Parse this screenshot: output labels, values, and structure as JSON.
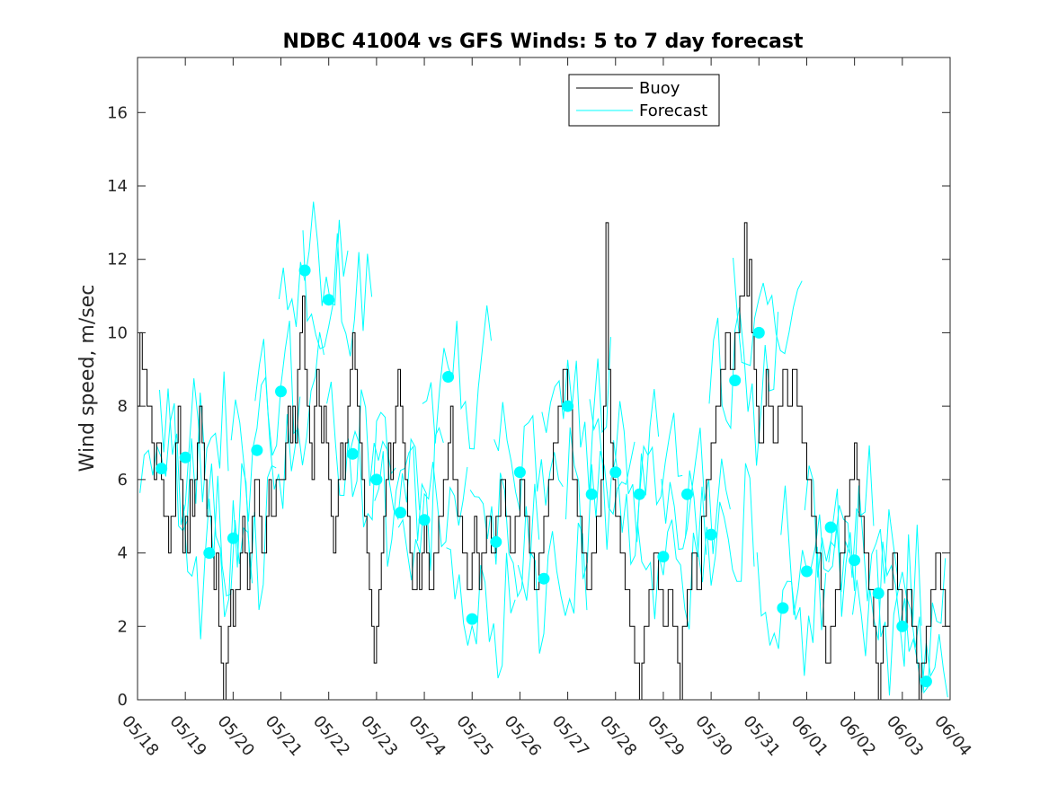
{
  "chart_data": {
    "type": "line",
    "title": "NDBC 41004 vs GFS Winds: 5 to 7 day forecast",
    "xlabel": "",
    "ylabel": "Wind speed, m/sec",
    "ylim": [
      0,
      17.5
    ],
    "xlim": [
      "05/18",
      "06/04"
    ],
    "xticks": [
      "05/18",
      "05/19",
      "05/20",
      "05/21",
      "05/22",
      "05/23",
      "05/24",
      "05/25",
      "05/26",
      "05/27",
      "05/28",
      "05/29",
      "05/30",
      "05/31",
      "06/01",
      "06/02",
      "06/03",
      "06/04"
    ],
    "yticks": [
      0,
      2,
      4,
      6,
      8,
      10,
      12,
      14,
      16
    ],
    "legend": {
      "placement": "top-center",
      "entries": [
        "Buoy",
        "Forecast"
      ]
    },
    "colors": {
      "buoy": "#000000",
      "forecast": "#00FFFF"
    },
    "grid": false,
    "series": [
      {
        "name": "Buoy",
        "x_unit": "days since 05/18",
        "points": [
          [
            0.0,
            8
          ],
          [
            0.05,
            10
          ],
          [
            0.1,
            9
          ],
          [
            0.2,
            8
          ],
          [
            0.3,
            7
          ],
          [
            0.35,
            6
          ],
          [
            0.4,
            7
          ],
          [
            0.5,
            6
          ],
          [
            0.55,
            5
          ],
          [
            0.6,
            5
          ],
          [
            0.65,
            4
          ],
          [
            0.7,
            5
          ],
          [
            0.8,
            7
          ],
          [
            0.85,
            8
          ],
          [
            0.9,
            6
          ],
          [
            0.95,
            4
          ],
          [
            1.0,
            5
          ],
          [
            1.05,
            4
          ],
          [
            1.1,
            6
          ],
          [
            1.15,
            5
          ],
          [
            1.2,
            6
          ],
          [
            1.25,
            7
          ],
          [
            1.3,
            8
          ],
          [
            1.35,
            7
          ],
          [
            1.4,
            6
          ],
          [
            1.45,
            5
          ],
          [
            1.5,
            5
          ],
          [
            1.55,
            4
          ],
          [
            1.6,
            3
          ],
          [
            1.65,
            4
          ],
          [
            1.7,
            2
          ],
          [
            1.75,
            1
          ],
          [
            1.8,
            0
          ],
          [
            1.85,
            1
          ],
          [
            1.9,
            2
          ],
          [
            1.95,
            3
          ],
          [
            2.0,
            2
          ],
          [
            2.05,
            3
          ],
          [
            2.1,
            3
          ],
          [
            2.15,
            4
          ],
          [
            2.2,
            5
          ],
          [
            2.25,
            4
          ],
          [
            2.3,
            3
          ],
          [
            2.35,
            4
          ],
          [
            2.4,
            5
          ],
          [
            2.45,
            6
          ],
          [
            2.5,
            6
          ],
          [
            2.55,
            5
          ],
          [
            2.6,
            4
          ],
          [
            2.65,
            4
          ],
          [
            2.7,
            5
          ],
          [
            2.75,
            6
          ],
          [
            2.8,
            5
          ],
          [
            2.9,
            6
          ],
          [
            3.0,
            6
          ],
          [
            3.1,
            7
          ],
          [
            3.15,
            8
          ],
          [
            3.2,
            7
          ],
          [
            3.25,
            8
          ],
          [
            3.3,
            7
          ],
          [
            3.35,
            9
          ],
          [
            3.4,
            10
          ],
          [
            3.45,
            11
          ],
          [
            3.5,
            9
          ],
          [
            3.55,
            8
          ],
          [
            3.6,
            7
          ],
          [
            3.65,
            6
          ],
          [
            3.7,
            8
          ],
          [
            3.75,
            9
          ],
          [
            3.8,
            8
          ],
          [
            3.85,
            7
          ],
          [
            3.9,
            8
          ],
          [
            3.95,
            7
          ],
          [
            4.0,
            6
          ],
          [
            4.05,
            5
          ],
          [
            4.1,
            4
          ],
          [
            4.15,
            5
          ],
          [
            4.2,
            6
          ],
          [
            4.25,
            7
          ],
          [
            4.3,
            6
          ],
          [
            4.35,
            7
          ],
          [
            4.4,
            8
          ],
          [
            4.45,
            9
          ],
          [
            4.5,
            10
          ],
          [
            4.55,
            9
          ],
          [
            4.6,
            8
          ],
          [
            4.65,
            7
          ],
          [
            4.7,
            6
          ],
          [
            4.75,
            5
          ],
          [
            4.8,
            4
          ],
          [
            4.85,
            3
          ],
          [
            4.9,
            2
          ],
          [
            4.95,
            1
          ],
          [
            5.0,
            2
          ],
          [
            5.05,
            3
          ],
          [
            5.1,
            4
          ],
          [
            5.15,
            5
          ],
          [
            5.2,
            6
          ],
          [
            5.25,
            7
          ],
          [
            5.3,
            6
          ],
          [
            5.35,
            7
          ],
          [
            5.4,
            8
          ],
          [
            5.45,
            9
          ],
          [
            5.5,
            8
          ],
          [
            5.55,
            7
          ],
          [
            5.6,
            6
          ],
          [
            5.65,
            5
          ],
          [
            5.7,
            4
          ],
          [
            5.75,
            3
          ],
          [
            5.8,
            3
          ],
          [
            5.85,
            4
          ],
          [
            5.9,
            3
          ],
          [
            5.95,
            4
          ],
          [
            6.0,
            5
          ],
          [
            6.05,
            4
          ],
          [
            6.1,
            3
          ],
          [
            6.15,
            3
          ],
          [
            6.2,
            4
          ],
          [
            6.3,
            5
          ],
          [
            6.4,
            6
          ],
          [
            6.5,
            7
          ],
          [
            6.55,
            8
          ],
          [
            6.6,
            6
          ],
          [
            6.7,
            5
          ],
          [
            6.8,
            4
          ],
          [
            6.9,
            3
          ],
          [
            7.0,
            4
          ],
          [
            7.05,
            5
          ],
          [
            7.1,
            4
          ],
          [
            7.15,
            3
          ],
          [
            7.2,
            4
          ],
          [
            7.3,
            5
          ],
          [
            7.4,
            4
          ],
          [
            7.5,
            5
          ],
          [
            7.6,
            6
          ],
          [
            7.7,
            5
          ],
          [
            7.8,
            4
          ],
          [
            7.9,
            5
          ],
          [
            8.0,
            6
          ],
          [
            8.1,
            5
          ],
          [
            8.2,
            4
          ],
          [
            8.3,
            3
          ],
          [
            8.4,
            4
          ],
          [
            8.5,
            5
          ],
          [
            8.6,
            6
          ],
          [
            8.7,
            7
          ],
          [
            8.8,
            8
          ],
          [
            8.9,
            9
          ],
          [
            9.0,
            8
          ],
          [
            9.1,
            6
          ],
          [
            9.2,
            5
          ],
          [
            9.3,
            4
          ],
          [
            9.4,
            3
          ],
          [
            9.5,
            4
          ],
          [
            9.6,
            5
          ],
          [
            9.7,
            6
          ],
          [
            9.75,
            8
          ],
          [
            9.8,
            13
          ],
          [
            9.85,
            9
          ],
          [
            9.9,
            7
          ],
          [
            9.95,
            6
          ],
          [
            10.0,
            5
          ],
          [
            10.1,
            4
          ],
          [
            10.2,
            3
          ],
          [
            10.3,
            2
          ],
          [
            10.4,
            1
          ],
          [
            10.5,
            0
          ],
          [
            10.55,
            1
          ],
          [
            10.6,
            2
          ],
          [
            10.7,
            3
          ],
          [
            10.8,
            4
          ],
          [
            10.9,
            3
          ],
          [
            11.0,
            2
          ],
          [
            11.1,
            3
          ],
          [
            11.2,
            2
          ],
          [
            11.3,
            1
          ],
          [
            11.35,
            0
          ],
          [
            11.4,
            2
          ],
          [
            11.5,
            3
          ],
          [
            11.6,
            4
          ],
          [
            11.7,
            3
          ],
          [
            11.8,
            5
          ],
          [
            11.9,
            6
          ],
          [
            12.0,
            7
          ],
          [
            12.1,
            8
          ],
          [
            12.2,
            9
          ],
          [
            12.3,
            10
          ],
          [
            12.4,
            9
          ],
          [
            12.5,
            10
          ],
          [
            12.6,
            11
          ],
          [
            12.7,
            13
          ],
          [
            12.75,
            11
          ],
          [
            12.8,
            12
          ],
          [
            12.85,
            10
          ],
          [
            12.9,
            9
          ],
          [
            12.95,
            8
          ],
          [
            13.0,
            7
          ],
          [
            13.1,
            8
          ],
          [
            13.15,
            9
          ],
          [
            13.2,
            8
          ],
          [
            13.3,
            7
          ],
          [
            13.4,
            8
          ],
          [
            13.5,
            9
          ],
          [
            13.6,
            8
          ],
          [
            13.7,
            9
          ],
          [
            13.8,
            8
          ],
          [
            13.9,
            7
          ],
          [
            14.0,
            6
          ],
          [
            14.1,
            5
          ],
          [
            14.2,
            4
          ],
          [
            14.3,
            3
          ],
          [
            14.35,
            2
          ],
          [
            14.4,
            1
          ],
          [
            14.5,
            2
          ],
          [
            14.6,
            3
          ],
          [
            14.7,
            4
          ],
          [
            14.8,
            5
          ],
          [
            14.9,
            6
          ],
          [
            15.0,
            7
          ],
          [
            15.05,
            6
          ],
          [
            15.1,
            5
          ],
          [
            15.2,
            4
          ],
          [
            15.3,
            3
          ],
          [
            15.4,
            2
          ],
          [
            15.45,
            1
          ],
          [
            15.5,
            0
          ],
          [
            15.55,
            1
          ],
          [
            15.6,
            2
          ],
          [
            15.7,
            3
          ],
          [
            15.8,
            4
          ],
          [
            15.9,
            3
          ],
          [
            16.0,
            2
          ],
          [
            16.1,
            3
          ],
          [
            16.2,
            2
          ],
          [
            16.3,
            1
          ],
          [
            16.35,
            0
          ],
          [
            16.4,
            1
          ],
          [
            16.5,
            2
          ],
          [
            16.6,
            3
          ],
          [
            16.7,
            4
          ],
          [
            16.8,
            3
          ],
          [
            16.9,
            2
          ],
          [
            17.0,
            4
          ]
        ]
      },
      {
        "name": "Forecast",
        "x_unit": "days since 05/18",
        "markers": [
          [
            0.5,
            6.3
          ],
          [
            1.0,
            6.6
          ],
          [
            1.5,
            4.0
          ],
          [
            2.0,
            4.4
          ],
          [
            2.5,
            6.8
          ],
          [
            3.0,
            8.4
          ],
          [
            3.5,
            11.7
          ],
          [
            4.0,
            10.9
          ],
          [
            4.5,
            6.7
          ],
          [
            5.0,
            6.0
          ],
          [
            5.5,
            5.1
          ],
          [
            6.0,
            4.9
          ],
          [
            6.5,
            8.8
          ],
          [
            7.0,
            2.2
          ],
          [
            7.5,
            4.3
          ],
          [
            8.0,
            6.2
          ],
          [
            8.5,
            3.3
          ],
          [
            9.0,
            8.0
          ],
          [
            9.5,
            5.6
          ],
          [
            10.0,
            6.2
          ],
          [
            10.5,
            5.6
          ],
          [
            11.0,
            3.9
          ],
          [
            11.5,
            5.6
          ],
          [
            12.0,
            4.5
          ],
          [
            12.5,
            8.7
          ],
          [
            13.0,
            10.0
          ],
          [
            13.5,
            2.5
          ],
          [
            14.0,
            3.5
          ],
          [
            14.5,
            4.7
          ],
          [
            15.0,
            3.8
          ],
          [
            15.5,
            2.9
          ],
          [
            16.0,
            2.0
          ],
          [
            16.5,
            0.5
          ]
        ]
      }
    ]
  }
}
